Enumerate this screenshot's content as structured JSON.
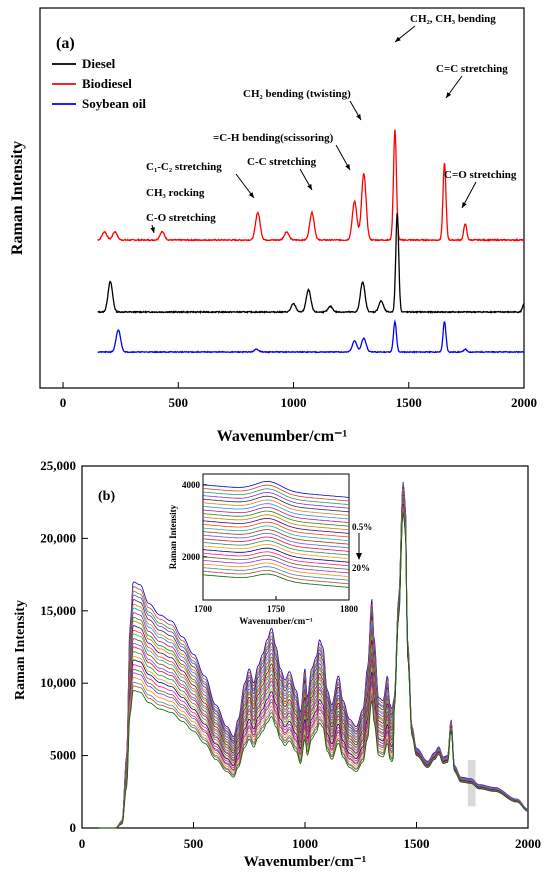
{
  "chart_data": [
    {
      "type": "line",
      "panel_label": "(a)",
      "xlabel": "Wavenumber/cm⁻¹",
      "ylabel": "Raman Intensity",
      "xlim": [
        -100,
        2000
      ],
      "x_ticks": [
        0,
        500,
        1000,
        1500,
        2000
      ],
      "y_ticks_shown": false,
      "legend": {
        "placement": "top-left",
        "entries": [
          {
            "name": "Diesel",
            "color": "#000000"
          },
          {
            "name": "Biodiesel",
            "color": "#ff0000"
          },
          {
            "name": "Soybean oil",
            "color": "#0000ff"
          }
        ]
      },
      "series": [
        {
          "name": "Biodiesel",
          "color": "#ff0000",
          "peaks": [
            [
              180,
              0.15
            ],
            [
              225,
              0.15
            ],
            [
              430,
              0.15
            ],
            [
              845,
              0.5
            ],
            [
              970,
              0.15
            ],
            [
              1080,
              0.5
            ],
            [
              1265,
              0.7
            ],
            [
              1305,
              1.2
            ],
            [
              1440,
              2.0
            ],
            [
              1655,
              1.4
            ],
            [
              1745,
              0.3
            ]
          ]
        },
        {
          "name": "Diesel",
          "color": "#000000",
          "peaks": [
            [
              205,
              0.55
            ],
            [
              1000,
              0.15
            ],
            [
              1065,
              0.4
            ],
            [
              1160,
              0.1
            ],
            [
              1300,
              0.55
            ],
            [
              1380,
              0.2
            ],
            [
              1450,
              1.8
            ],
            [
              2000,
              0.15
            ]
          ]
        },
        {
          "name": "Soybean oil",
          "color": "#0000ff",
          "peaks": [
            [
              240,
              0.4
            ],
            [
              840,
              0.05
            ],
            [
              1265,
              0.2
            ],
            [
              1305,
              0.25
            ],
            [
              1440,
              0.55
            ],
            [
              1655,
              0.55
            ],
            [
              1745,
              0.05
            ]
          ]
        }
      ],
      "annotations": [
        {
          "text": "CH₂, CH₃ bending",
          "wavenumber": 1440
        },
        {
          "text": "C=C stretching",
          "wavenumber": 1655
        },
        {
          "text": "CH₂ bending (twisting)",
          "wavenumber": 1305
        },
        {
          "text": "=C-H bending(scissoring)",
          "wavenumber": 1265
        },
        {
          "text": "C-C stretching",
          "wavenumber": 1080
        },
        {
          "text": "C₁-C₂ stretching",
          "wavenumber": 845
        },
        {
          "text": "C=O stretching",
          "wavenumber": 1745
        },
        {
          "text": "CH₃ rocking",
          "wavenumber": null
        },
        {
          "text": "C-O stretching",
          "wavenumber": null
        }
      ]
    },
    {
      "type": "line",
      "panel_label": "(b)",
      "xlabel": "Wavenumber/cm⁻¹",
      "ylabel": "Raman Intensity",
      "xlim": [
        0,
        2000
      ],
      "ylim": [
        0,
        25000
      ],
      "x_ticks": [
        0,
        500,
        1000,
        1500,
        2000
      ],
      "y_ticks": [
        0,
        5000,
        10000,
        15000,
        20000,
        25000
      ],
      "y_tick_labels": [
        "0",
        "5000",
        "10,000",
        "15,000",
        "20,000",
        "25,000"
      ],
      "series_count": 26,
      "base_spectrum": {
        "x": [
          100,
          150,
          180,
          200,
          215,
          230,
          260,
          300,
          350,
          400,
          450,
          500,
          550,
          600,
          650,
          680,
          700,
          730,
          750,
          770,
          790,
          810,
          830,
          850,
          870,
          890,
          910,
          930,
          960,
          980,
          1000,
          1010,
          1030,
          1050,
          1065,
          1080,
          1100,
          1120,
          1150,
          1170,
          1200,
          1230,
          1260,
          1280,
          1300,
          1310,
          1330,
          1350,
          1370,
          1380,
          1390,
          1400,
          1420,
          1440,
          1450,
          1460,
          1480,
          1500,
          1550,
          1580,
          1600,
          1620,
          1640,
          1655,
          1670,
          1700,
          1745,
          1780,
          1850,
          1950,
          2000
        ],
        "y": [
          0,
          0,
          500,
          5000,
          14000,
          17000,
          16800,
          15500,
          14700,
          14300,
          13200,
          12000,
          10500,
          8500,
          7000,
          6300,
          7500,
          10000,
          11000,
          10000,
          11200,
          12000,
          13000,
          13800,
          12500,
          11000,
          10200,
          10800,
          9500,
          8000,
          11000,
          9000,
          11000,
          11800,
          13000,
          12500,
          9500,
          8500,
          10500,
          8800,
          7500,
          7000,
          8200,
          11000,
          15800,
          13000,
          9000,
          8800,
          10500,
          8600,
          8200,
          9000,
          16000,
          23900,
          22500,
          13000,
          7000,
          5500,
          4600,
          5200,
          5600,
          4900,
          5000,
          7500,
          4300,
          3500,
          3400,
          3000,
          2800,
          2000,
          1300
        ]
      },
      "inset": {
        "xlim": [
          1700,
          1800
        ],
        "x_ticks": [
          1700,
          1750,
          1800
        ],
        "y_ticks": [
          2000,
          4000
        ],
        "ylabel": "Raman Intensity",
        "xlabel": "Wavenumber/cm⁻¹",
        "peak_at": 1745,
        "annotations": [
          "0.5%",
          "20%"
        ]
      }
    }
  ],
  "palette": [
    "#0000cc",
    "#d6403a",
    "#2c9e4b",
    "#8a2be2",
    "#333333",
    "#e67e22",
    "#1e90ff",
    "#c71585",
    "#228b22",
    "#b8860b",
    "#4b0082",
    "#ff4500",
    "#20b2aa",
    "#8b4513",
    "#6a5acd",
    "#dc143c",
    "#2e8b57",
    "#daa520",
    "#000080",
    "#ff1493",
    "#556b2f",
    "#9932cc",
    "#ff8c00",
    "#4682b4",
    "#a0522d",
    "#006400"
  ]
}
